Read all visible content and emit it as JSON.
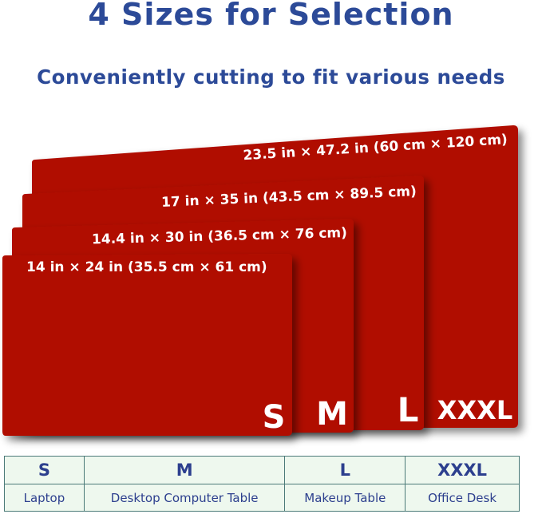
{
  "title": "4 Sizes for Selection",
  "subtitle": "Conveniently cutting to fit various needs",
  "mats": [
    {
      "size": "XXXL",
      "dimensions": "23.5 in × 47.2 in (60 cm × 120 cm)"
    },
    {
      "size": "L",
      "dimensions": "17 in × 35 in (43.5 cm × 89.5 cm)"
    },
    {
      "size": "M",
      "dimensions": "14.4 in × 30 in (36.5 cm × 76 cm)"
    },
    {
      "size": "S",
      "dimensions": "14 in × 24 in (35.5 cm × 61 cm)"
    }
  ],
  "table": {
    "sizes": [
      "S",
      "M",
      "L",
      "XXXL"
    ],
    "uses": [
      "Laptop",
      "Desktop Computer Table",
      "Makeup Table",
      "Office Desk"
    ]
  },
  "colors": {
    "mat": "#b01005",
    "title": "#2c4a98",
    "table_bg": "#eef8ee"
  }
}
